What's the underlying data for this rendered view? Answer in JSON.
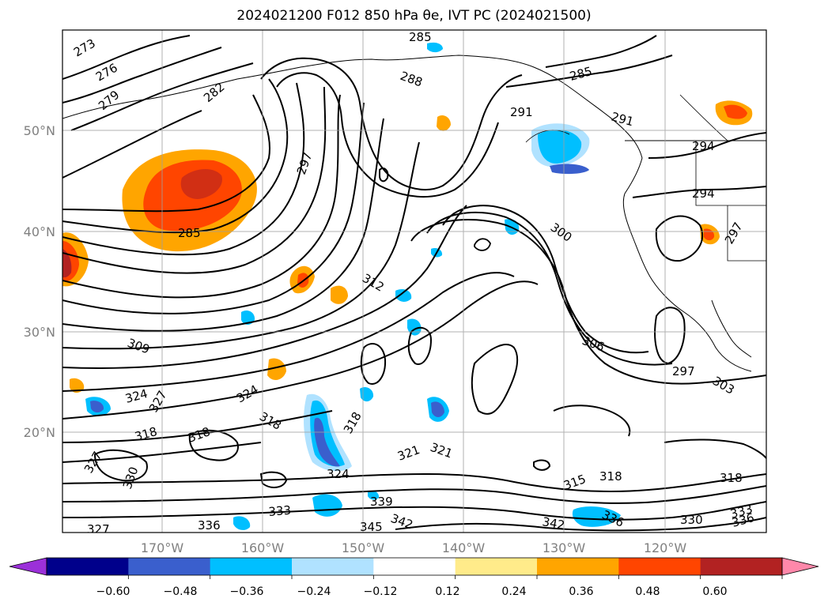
{
  "title": "2024021200 F012 850 hPa θe, IVT PC (2024021500)",
  "lat_labels": [
    "50°N",
    "40°N",
    "30°N",
    "20°N"
  ],
  "lon_labels": [
    "170°W",
    "160°W",
    "150°W",
    "140°W",
    "130°W",
    "120°W"
  ],
  "contour_labels": [
    "273",
    "276",
    "279",
    "282",
    "285",
    "285",
    "288",
    "291",
    "291",
    "294",
    "294",
    "297",
    "300",
    "297",
    "306",
    "309",
    "303",
    "297",
    "312",
    "324",
    "327",
    "318",
    "318",
    "324",
    "318",
    "318",
    "321",
    "321",
    "324",
    "327",
    "330",
    "315",
    "318",
    "318",
    "333",
    "339",
    "342",
    "336",
    "342",
    "336",
    "345",
    "330",
    "333",
    "336",
    "327"
  ],
  "colorbar": {
    "ticks": [
      "−0.60",
      "−0.48",
      "−0.36",
      "−0.24",
      "−0.12",
      "0.12",
      "0.24",
      "0.36",
      "0.48",
      "0.60"
    ],
    "colors": [
      "#9b30d9",
      "#00008b",
      "#3a5fcd",
      "#00bfff",
      "#b0e2ff",
      "#ffffff",
      "#ffeb8a",
      "#ffa500",
      "#ff4500",
      "#b22222",
      "#ff88aa"
    ]
  }
}
